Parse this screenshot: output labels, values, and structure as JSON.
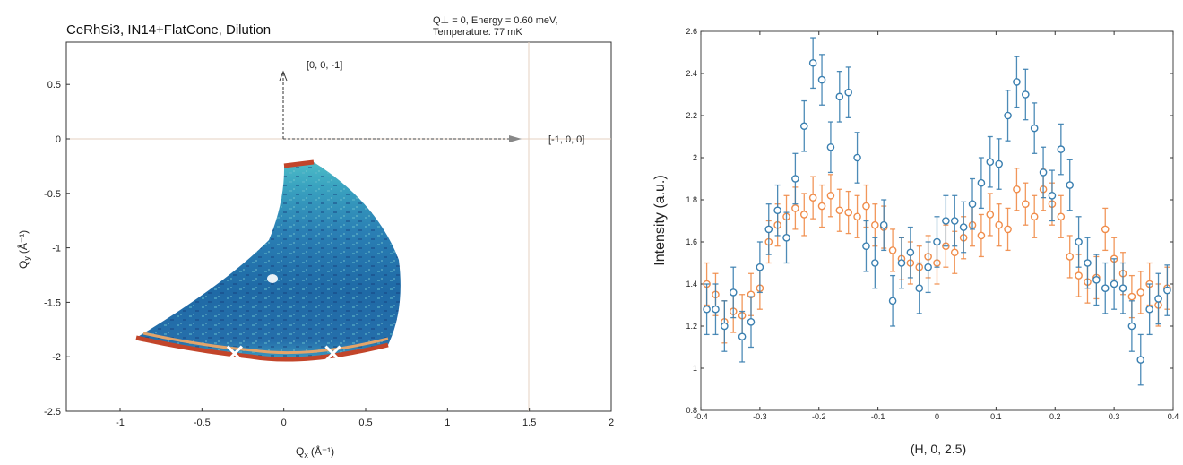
{
  "left_panel": {
    "title": "CeRhSi3, IN14+FlatCone, Dilution",
    "condition_line1": "Q⊥ = 0, Energy = 0.60 meV,",
    "condition_line2": "Temperature: 77 mK",
    "arrow_up_label": "[0, 0, -1]",
    "arrow_right_label": "[-1, 0, 0]",
    "xlabel": "Q",
    "xlabel_sub": "x",
    "xlabel_unit": "(Å⁻¹)",
    "ylabel": "Q",
    "ylabel_sub": "y",
    "ylabel_unit": "(Å⁻¹)",
    "colors": {
      "map_blue": "#1f6aa6",
      "map_teal": "#45b3c4",
      "map_edge": "#c2452a"
    }
  },
  "chart_data": [
    {
      "type": "heatmap",
      "title": "CeRhSi3, IN14+FlatCone, Dilution",
      "xlim": [
        -1,
        2
      ],
      "ylim": [
        -2.5,
        0.75
      ],
      "xticks": [
        "-1",
        "-0.5",
        "0",
        "0.5",
        "1",
        "1.5",
        "2"
      ],
      "xtick_values": [
        -1,
        -0.5,
        0,
        0.5,
        1,
        1.5,
        2
      ],
      "yticks": [
        "0.5",
        "0",
        "-0.5",
        "-1",
        "-1.5",
        "-2",
        "-2.5"
      ],
      "ytick_values": [
        0.5,
        0,
        -0.5,
        -1,
        -1.5,
        -2,
        -2.5
      ],
      "markers": [
        {
          "x": -0.3,
          "y": -1.6
        },
        {
          "x": 0.3,
          "y": -1.6
        }
      ]
    },
    {
      "type": "scatter",
      "xlabel": "(H, 0, 2.5)",
      "ylabel": "Intensity (a.u.)",
      "xlim": [
        -0.4,
        0.4
      ],
      "ylim": [
        0.8,
        2.6
      ],
      "xticks": [
        "-0.4",
        "-0.3",
        "-0.2",
        "-0.1",
        "0",
        "0.1",
        "0.2",
        "0.3",
        "0.4"
      ],
      "xtick_values": [
        -0.4,
        -0.3,
        -0.2,
        -0.1,
        0,
        0.1,
        0.2,
        0.3,
        0.4
      ],
      "yticks": [
        "0.8",
        "1",
        "1.2",
        "1.4",
        "1.6",
        "1.8",
        "2",
        "2.2",
        "2.4",
        "2.6"
      ],
      "ytick_values": [
        0.8,
        1.0,
        1.2,
        1.4,
        1.6,
        1.8,
        2.0,
        2.2,
        2.4,
        2.6
      ],
      "series": [
        {
          "color": "#3a7fb0",
          "x": [
            -0.39,
            -0.375,
            -0.36,
            -0.345,
            -0.33,
            -0.315,
            -0.3,
            -0.285,
            -0.27,
            -0.255,
            -0.24,
            -0.225,
            -0.21,
            -0.195,
            -0.18,
            -0.165,
            -0.15,
            -0.135,
            -0.12,
            -0.105,
            -0.09,
            -0.075,
            -0.06,
            -0.045,
            -0.03,
            -0.015,
            0,
            0.015,
            0.03,
            0.045,
            0.06,
            0.075,
            0.09,
            0.105,
            0.12,
            0.135,
            0.15,
            0.165,
            0.18,
            0.195,
            0.21,
            0.225,
            0.24,
            0.255,
            0.27,
            0.285,
            0.3,
            0.315,
            0.33,
            0.345,
            0.36,
            0.375,
            0.39
          ],
          "y": [
            1.28,
            1.28,
            1.2,
            1.36,
            1.15,
            1.22,
            1.48,
            1.66,
            1.75,
            1.62,
            1.9,
            2.15,
            2.45,
            2.37,
            2.05,
            2.29,
            2.31,
            2.0,
            1.58,
            1.5,
            1.68,
            1.32,
            1.5,
            1.55,
            1.38,
            1.48,
            1.6,
            1.7,
            1.7,
            1.67,
            1.78,
            1.88,
            1.98,
            1.97,
            2.2,
            2.36,
            2.3,
            2.14,
            1.93,
            1.82,
            2.04,
            1.87,
            1.6,
            1.5,
            1.42,
            1.38,
            1.4,
            1.38,
            1.2,
            1.04,
            1.28,
            1.33,
            1.37
          ],
          "err": 0.12
        },
        {
          "color": "#f08c4a",
          "x": [
            -0.39,
            -0.375,
            -0.36,
            -0.345,
            -0.33,
            -0.315,
            -0.3,
            -0.285,
            -0.27,
            -0.255,
            -0.24,
            -0.225,
            -0.21,
            -0.195,
            -0.18,
            -0.165,
            -0.15,
            -0.135,
            -0.12,
            -0.105,
            -0.09,
            -0.075,
            -0.06,
            -0.045,
            -0.03,
            -0.015,
            0,
            0.015,
            0.03,
            0.045,
            0.06,
            0.075,
            0.09,
            0.105,
            0.12,
            0.135,
            0.15,
            0.165,
            0.18,
            0.195,
            0.21,
            0.225,
            0.24,
            0.255,
            0.27,
            0.285,
            0.3,
            0.315,
            0.33,
            0.345,
            0.36,
            0.375,
            0.39
          ],
          "y": [
            1.4,
            1.35,
            1.22,
            1.27,
            1.25,
            1.35,
            1.38,
            1.6,
            1.68,
            1.72,
            1.76,
            1.73,
            1.81,
            1.77,
            1.82,
            1.75,
            1.74,
            1.72,
            1.77,
            1.68,
            1.67,
            1.56,
            1.52,
            1.5,
            1.48,
            1.53,
            1.5,
            1.58,
            1.55,
            1.62,
            1.68,
            1.63,
            1.73,
            1.68,
            1.66,
            1.85,
            1.78,
            1.72,
            1.85,
            1.78,
            1.72,
            1.53,
            1.44,
            1.41,
            1.43,
            1.66,
            1.52,
            1.45,
            1.34,
            1.36,
            1.4,
            1.3,
            1.38
          ],
          "err": 0.1
        }
      ]
    }
  ]
}
